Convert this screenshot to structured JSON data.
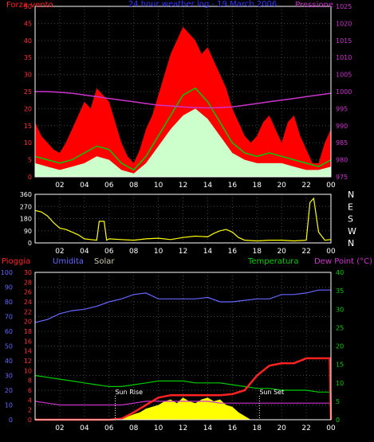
{
  "chart_data": [
    {
      "type": "line",
      "panel": "wind-pressure",
      "title": "24 hour weather log - 19 March 2006",
      "left_label": "Forza vento",
      "right_label": "Pressione",
      "ylim_left": [
        0,
        50
      ],
      "ylim_right": [
        975,
        1025
      ],
      "left_ticks": [
        "0",
        "5",
        "10",
        "15",
        "20",
        "25",
        "30",
        "35",
        "40",
        "45",
        "50"
      ],
      "right_ticks": [
        "975",
        "980",
        "985",
        "990",
        "995",
        "1000",
        "1005",
        "1010",
        "1015",
        "1020",
        "1025"
      ],
      "x_ticks": [
        "02",
        "04",
        "06",
        "08",
        "10",
        "12",
        "14",
        "16",
        "18",
        "20",
        "22",
        "00"
      ],
      "x_hours": [
        0,
        24
      ],
      "colors": {
        "gust": "#ff0000",
        "avg": "#00cc00",
        "wind": "#ccffcc",
        "pressure": "#cc33cc"
      },
      "series": [
        {
          "key": "pressure",
          "x": [
            0,
            1,
            2,
            3,
            4,
            5,
            6,
            7,
            8,
            9,
            10,
            11,
            12,
            13,
            14,
            15,
            16,
            17,
            18,
            19,
            20,
            21,
            22,
            23,
            24
          ],
          "values": [
            1000,
            1000,
            999.8,
            999.5,
            999,
            998.5,
            998,
            997.5,
            997,
            996.5,
            996,
            995.8,
            995.5,
            995.3,
            995.2,
            995.3,
            995.5,
            996,
            996.5,
            997,
            997.5,
            998,
            998.5,
            999,
            999.5
          ]
        },
        {
          "key": "gust",
          "x": [
            0,
            0.5,
            1,
            1.5,
            2,
            2.5,
            3,
            3.5,
            4,
            4.5,
            5,
            5.5,
            6,
            6.5,
            7,
            7.5,
            8,
            8.5,
            9,
            9.5,
            10,
            10.5,
            11,
            11.5,
            12,
            12.5,
            13,
            13.5,
            14,
            14.5,
            15,
            15.5,
            16,
            16.5,
            17,
            17.5,
            18,
            18.5,
            19,
            19.5,
            20,
            20.5,
            21,
            21.5,
            22,
            22.5,
            23,
            23.5,
            24
          ],
          "values": [
            16,
            12,
            10,
            8,
            7,
            10,
            14,
            18,
            22,
            20,
            26,
            24,
            22,
            16,
            10,
            6,
            4,
            8,
            14,
            18,
            24,
            30,
            36,
            40,
            44,
            42,
            40,
            36,
            38,
            34,
            30,
            26,
            20,
            16,
            12,
            10,
            12,
            16,
            18,
            14,
            10,
            16,
            18,
            12,
            8,
            4,
            4,
            10,
            14
          ]
        },
        {
          "key": "avg",
          "x": [
            0,
            1,
            2,
            3,
            4,
            5,
            6,
            7,
            8,
            9,
            10,
            11,
            12,
            13,
            14,
            15,
            16,
            17,
            18,
            19,
            20,
            21,
            22,
            23,
            24
          ],
          "values": [
            6,
            5,
            4,
            5,
            7,
            9,
            8,
            4,
            2,
            6,
            12,
            18,
            24,
            26,
            22,
            16,
            10,
            7,
            6,
            7,
            6,
            5,
            4,
            3,
            5
          ]
        },
        {
          "key": "wind",
          "x": [
            0,
            1,
            2,
            3,
            4,
            5,
            6,
            7,
            8,
            9,
            10,
            11,
            12,
            13,
            14,
            15,
            16,
            17,
            18,
            19,
            20,
            21,
            22,
            23,
            24
          ],
          "values": [
            4,
            3,
            2,
            3,
            4,
            6,
            5,
            2,
            1,
            4,
            9,
            14,
            18,
            20,
            17,
            12,
            7,
            5,
            4,
            4,
            4,
            3,
            2,
            2,
            3
          ]
        }
      ]
    },
    {
      "type": "line",
      "panel": "wind-direction",
      "ylim": [
        0,
        360
      ],
      "left_ticks": [
        "0",
        "90",
        "180",
        "270",
        "360"
      ],
      "right_labels": [
        "N",
        "W",
        "S",
        "E",
        "N"
      ],
      "x_ticks": [
        "02",
        "04",
        "06",
        "08",
        "10",
        "12",
        "14",
        "16",
        "18",
        "20",
        "22",
        "00"
      ],
      "color": "#ffff00",
      "series": [
        {
          "key": "direction",
          "x": [
            0,
            0.5,
            1,
            1.5,
            2,
            2.5,
            3,
            3.5,
            4,
            4.5,
            5,
            5.2,
            5.4,
            5.6,
            5.8,
            6,
            7,
            8,
            9,
            10,
            11,
            12,
            13,
            14,
            14.5,
            15,
            15.5,
            16,
            16.5,
            17,
            18,
            19,
            20,
            21,
            22,
            22.3,
            22.6,
            23,
            23.5,
            24
          ],
          "values": [
            240,
            230,
            200,
            150,
            110,
            100,
            80,
            60,
            30,
            25,
            20,
            160,
            160,
            160,
            20,
            30,
            25,
            20,
            30,
            35,
            25,
            40,
            50,
            45,
            70,
            90,
            100,
            80,
            40,
            20,
            15,
            20,
            20,
            15,
            20,
            300,
            330,
            80,
            20,
            25
          ]
        }
      ]
    },
    {
      "type": "line",
      "panel": "rain-humidity-temp",
      "labels": {
        "rain": "Pioggia",
        "humidity": "Umidita",
        "solar": "Solar",
        "temp": "Temperatura",
        "dew": "Dew Point (°C)"
      },
      "annotations": [
        "Sun Rise",
        "Sun Set"
      ],
      "ylim_humidity": [
        0,
        100
      ],
      "ylim_rain": [
        0,
        30
      ],
      "ylim_temp": [
        0,
        40
      ],
      "humidity_ticks": [
        "0",
        "10",
        "20",
        "30",
        "40",
        "50",
        "60",
        "70",
        "80",
        "90",
        "100"
      ],
      "rain_ticks": [
        "0",
        "2",
        "4",
        "6",
        "8",
        "10",
        "12",
        "14",
        "16",
        "18",
        "20",
        "22",
        "24",
        "26",
        "28",
        "30"
      ],
      "temp_ticks": [
        "0",
        "5",
        "10",
        "15",
        "20",
        "25",
        "30",
        "35",
        "40"
      ],
      "x_ticks": [
        "02",
        "04",
        "06",
        "08",
        "10",
        "12",
        "14",
        "16",
        "18",
        "20",
        "22",
        "00"
      ],
      "colors": {
        "rain": "#ff2222",
        "humidity": "#6666ff",
        "solar": "#ffff00",
        "temp": "#00cc00",
        "dew": "#cc33cc"
      },
      "series": [
        {
          "key": "humidity",
          "x": [
            0,
            1,
            2,
            3,
            4,
            5,
            6,
            7,
            8,
            9,
            10,
            11,
            12,
            13,
            14,
            15,
            16,
            17,
            18,
            19,
            20,
            21,
            22,
            23,
            24
          ],
          "values": [
            66,
            68,
            72,
            74,
            75,
            77,
            80,
            82,
            85,
            86,
            82,
            82,
            82,
            82,
            83,
            80,
            80,
            81,
            82,
            82,
            85,
            85,
            86,
            88,
            88
          ]
        },
        {
          "key": "temp",
          "x": [
            0,
            1,
            2,
            3,
            4,
            5,
            6,
            7,
            8,
            9,
            10,
            11,
            12,
            13,
            14,
            15,
            16,
            17,
            18,
            19,
            20,
            21,
            22,
            23,
            24
          ],
          "values": [
            12,
            11.5,
            11,
            10.5,
            10,
            9.5,
            9,
            9,
            9.5,
            10,
            10.5,
            10.5,
            10.5,
            10,
            10,
            10,
            9.5,
            9,
            8.5,
            8.5,
            8,
            8,
            8,
            7.5,
            7.5
          ]
        },
        {
          "key": "dew",
          "x": [
            0,
            1,
            2,
            3,
            4,
            5,
            6,
            7,
            8,
            9,
            10,
            11,
            12,
            13,
            14,
            15,
            16,
            17,
            18,
            19,
            20,
            21,
            22,
            23,
            24
          ],
          "values": [
            5,
            4.5,
            4,
            4,
            4,
            4,
            4,
            4,
            4.5,
            5,
            5,
            5,
            5,
            5,
            5,
            4.5,
            4.5,
            4.5,
            4.5,
            4.5,
            4.5,
            4.5,
            4.5,
            4.5,
            4.5
          ]
        },
        {
          "key": "rain",
          "x": [
            0,
            1,
            2,
            3,
            4,
            5,
            6,
            7,
            8,
            9,
            10,
            11,
            12,
            13,
            14,
            15,
            16,
            17,
            18,
            19,
            20,
            21,
            22,
            23,
            23.9,
            24
          ],
          "values": [
            0,
            0,
            0,
            0,
            0,
            0,
            0,
            0.2,
            1.5,
            3,
            4.5,
            5,
            5,
            5,
            5,
            5,
            5.2,
            6,
            9,
            11,
            11.5,
            11.5,
            12.5,
            12.5,
            12.5,
            0
          ]
        },
        {
          "key": "solar",
          "x": [
            6.5,
            7,
            7.5,
            8,
            8.5,
            9,
            9.5,
            10,
            10.5,
            11,
            11.5,
            12,
            12.5,
            13,
            13.5,
            14,
            14.5,
            15,
            15.5,
            16,
            16.5,
            17,
            17.5
          ],
          "values": [
            0,
            0.3,
            0.8,
            1.5,
            2,
            3,
            3.5,
            4,
            5,
            5.5,
            4.5,
            6,
            5,
            4.5,
            5.5,
            6,
            5,
            5.5,
            4,
            3.5,
            2,
            1,
            0
          ]
        }
      ]
    }
  ]
}
